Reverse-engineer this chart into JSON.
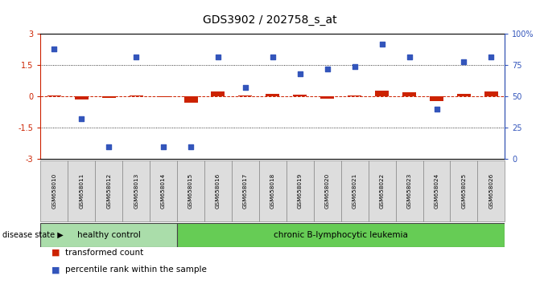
{
  "title": "GDS3902 / 202758_s_at",
  "samples": [
    "GSM658010",
    "GSM658011",
    "GSM658012",
    "GSM658013",
    "GSM658014",
    "GSM658015",
    "GSM658016",
    "GSM658017",
    "GSM658018",
    "GSM658019",
    "GSM658020",
    "GSM658021",
    "GSM658022",
    "GSM658023",
    "GSM658024",
    "GSM658025",
    "GSM658026"
  ],
  "healthy_count": 5,
  "red_values": [
    0.07,
    -0.13,
    -0.07,
    0.04,
    -0.04,
    -0.3,
    0.23,
    0.04,
    0.13,
    0.08,
    -0.1,
    0.04,
    0.3,
    0.2,
    -0.2,
    0.13,
    0.23
  ],
  "blue_values": [
    88,
    32,
    10,
    82,
    10,
    10,
    82,
    57,
    82,
    68,
    72,
    74,
    92,
    82,
    40,
    78,
    82
  ],
  "ylim_left": [
    -3,
    3
  ],
  "ylim_right": [
    0,
    100
  ],
  "yticks_left": [
    -3,
    -1.5,
    0,
    1.5,
    3
  ],
  "ytick_labels_left": [
    "-3",
    "-1.5",
    "0",
    "1.5",
    "3"
  ],
  "yticks_right_pct": [
    0,
    25,
    50,
    75,
    100
  ],
  "ytick_labels_right": [
    "0",
    "25",
    "50",
    "75",
    "100%"
  ],
  "red_color": "#CC2200",
  "blue_color": "#3355BB",
  "healthy_bg": "#AADDAA",
  "leukemia_bg": "#66CC55",
  "sample_bg": "#DDDDDD",
  "healthy_label": "healthy control",
  "leukemia_label": "chronic B-lymphocytic leukemia",
  "legend_red": "transformed count",
  "legend_blue": "percentile rank within the sample",
  "disease_state_label": "disease state"
}
